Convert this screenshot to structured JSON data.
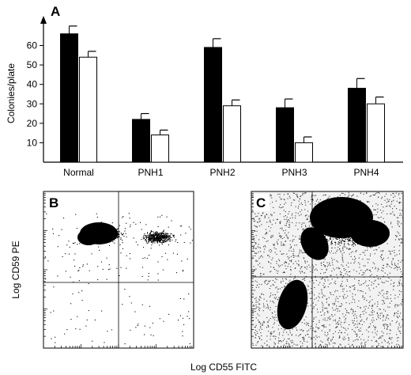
{
  "chart_data": [
    {
      "type": "bar",
      "panel_label": "A",
      "ylabel": "Colonies/plate",
      "xlabel": "",
      "categories": [
        "Normal",
        "PNH1",
        "PNH2",
        "PNH3",
        "PNH4"
      ],
      "yticks": [
        "10",
        "20",
        "30",
        "40",
        "50",
        "60"
      ],
      "ylim": [
        0,
        72
      ],
      "series": [
        {
          "values": [
            66,
            22,
            59,
            28,
            38
          ],
          "errors": [
            4,
            3,
            4.5,
            4.5,
            5
          ],
          "color": "#000000"
        },
        {
          "values": [
            54,
            14,
            29,
            10,
            30
          ],
          "errors": [
            3,
            2.5,
            3,
            3,
            3.5
          ],
          "color": "#ffffff"
        }
      ],
      "grid": false,
      "legend": "none"
    },
    {
      "type": "scatter",
      "panel_label": "B",
      "xlabel": "",
      "ylabel": "Log CD59 PE",
      "scale": "log",
      "quadrant_lines": true
    },
    {
      "type": "scatter",
      "panel_label": "C",
      "xlabel": "Log CD55 FITC",
      "ylabel": "",
      "scale": "log",
      "quadrant_lines": true
    }
  ]
}
